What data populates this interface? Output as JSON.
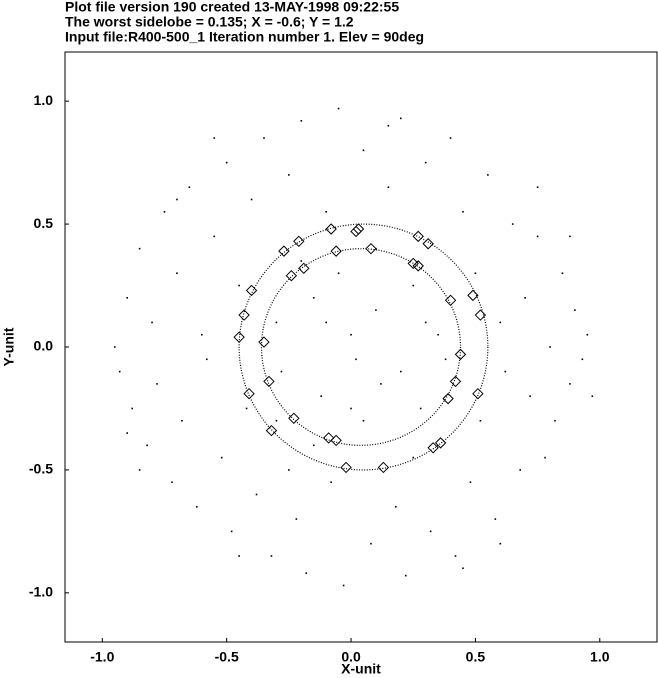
{
  "chart_data": {
    "type": "scatter",
    "title_lines": [
      "Plot file version 190  created 13-MAY-1998 09:22:55",
      "The worst sidelobe = 0.135; X =  -0.6; Y =   1.2",
      "Input file:R400-500_1       Iteration number   1. Elev = 90deg"
    ],
    "x_label": "X-unit",
    "y_label": "Y-unit",
    "xlim": [
      -1.15,
      1.23
    ],
    "ylim": [
      -1.2,
      1.2
    ],
    "xticks": [
      {
        "value": -1,
        "label": "-1.0"
      },
      {
        "value": -0.5,
        "label": "-0.5"
      },
      {
        "value": 0,
        "label": "0.0"
      },
      {
        "value": 0.5,
        "label": "0.5"
      },
      {
        "value": 1,
        "label": "1.0"
      }
    ],
    "yticks": [
      {
        "value": -1,
        "label": "-1.0"
      },
      {
        "value": -0.5,
        "label": "-0.5"
      },
      {
        "value": 0,
        "label": "0.0"
      },
      {
        "value": 0.5,
        "label": "0.5"
      },
      {
        "value": 1,
        "label": "1.0"
      }
    ],
    "circles": [
      {
        "cx": 0.05,
        "cy": 0,
        "r": 0.5
      },
      {
        "cx": 0.04,
        "cy": 0,
        "r": 0.4
      }
    ],
    "series": [
      {
        "color": "#000000",
        "marker": "dot",
        "x": [
          -0.95,
          -0.93,
          -0.9,
          -0.88,
          -0.85,
          -0.82,
          -0.8,
          -0.78,
          -0.75,
          -0.72,
          -0.7,
          -0.68,
          -0.65,
          -0.62,
          -0.6,
          -0.58,
          -0.55,
          -0.52,
          -0.5,
          -0.48,
          -0.45,
          -0.42,
          -0.4,
          -0.38,
          -0.35,
          -0.32,
          -0.3,
          -0.28,
          -0.25,
          -0.22,
          -0.2,
          -0.18,
          -0.15,
          -0.12,
          -0.1,
          -0.08,
          -0.05,
          -0.03,
          0.0,
          0.02,
          0.05,
          0.08,
          0.1,
          0.12,
          0.15,
          0.18,
          0.2,
          0.22,
          0.25,
          0.28,
          0.3,
          0.32,
          0.35,
          0.38,
          0.4,
          0.42,
          0.45,
          0.48,
          0.5,
          0.52,
          0.55,
          0.58,
          0.6,
          0.62,
          0.65,
          0.68,
          0.7,
          0.72,
          0.75,
          0.78,
          0.8,
          0.82,
          0.85,
          0.88,
          0.9,
          0.93,
          0.95,
          0.97,
          0.1,
          -0.15,
          0.2,
          -0.2,
          0.05,
          -0.05,
          0.3,
          -0.3,
          0.15,
          -0.45,
          0.6,
          -0.7,
          0.75,
          -0.85,
          0.25,
          -0.1,
          0.0,
          -0.25,
          0.45,
          -0.55,
          0.88,
          -0.9
        ],
        "y": [
          0.0,
          -0.1,
          0.2,
          -0.25,
          0.4,
          -0.4,
          0.1,
          -0.15,
          0.55,
          -0.55,
          0.3,
          -0.3,
          0.65,
          -0.65,
          0.05,
          -0.05,
          0.45,
          -0.45,
          0.75,
          -0.75,
          0.25,
          -0.25,
          0.6,
          -0.6,
          0.85,
          -0.85,
          0.1,
          -0.1,
          0.7,
          -0.7,
          0.92,
          -0.92,
          0.2,
          -0.2,
          0.55,
          -0.55,
          0.97,
          -0.97,
          0.05,
          -0.05,
          0.8,
          -0.8,
          0.15,
          -0.15,
          0.65,
          -0.65,
          0.93,
          -0.93,
          0.25,
          -0.25,
          0.75,
          -0.75,
          0.05,
          -0.05,
          0.85,
          -0.85,
          0.55,
          -0.55,
          0.3,
          -0.3,
          0.7,
          -0.7,
          0.1,
          -0.1,
          0.5,
          -0.5,
          0.2,
          -0.2,
          0.45,
          -0.45,
          0.0,
          -0.3,
          0.3,
          -0.15,
          0.15,
          -0.05,
          0.05,
          -0.2,
          0.4,
          -0.4,
          -0.1,
          0.35,
          -0.3,
          0.3,
          0.1,
          -0.3,
          0.9,
          -0.85,
          -0.8,
          0.6,
          0.65,
          -0.5,
          -0.45,
          0.1,
          -0.25,
          -0.5,
          -0.9,
          0.85,
          0.45,
          -0.35
        ]
      },
      {
        "color": "#000000",
        "marker": "diamond",
        "x": [
          0.03,
          0.02,
          -0.08,
          -0.21,
          -0.27,
          -0.19,
          -0.24,
          -0.4,
          -0.43,
          -0.45,
          -0.35,
          -0.33,
          -0.41,
          -0.32,
          -0.23,
          -0.09,
          -0.06,
          -0.02,
          0.13,
          0.33,
          0.36,
          0.39,
          0.51,
          0.42,
          0.44,
          0.4,
          0.52,
          0.49,
          0.25,
          0.27,
          0.31,
          0.27,
          0.08,
          -0.06
        ],
        "y": [
          0.48,
          0.47,
          0.48,
          0.43,
          0.39,
          0.32,
          0.29,
          0.23,
          0.13,
          0.04,
          0.02,
          -0.14,
          -0.19,
          -0.34,
          -0.29,
          -0.37,
          -0.38,
          -0.49,
          -0.49,
          -0.41,
          -0.39,
          -0.21,
          -0.19,
          -0.14,
          -0.03,
          0.19,
          0.13,
          0.21,
          0.34,
          0.33,
          0.42,
          0.45,
          0.4,
          0.39
        ]
      }
    ]
  }
}
